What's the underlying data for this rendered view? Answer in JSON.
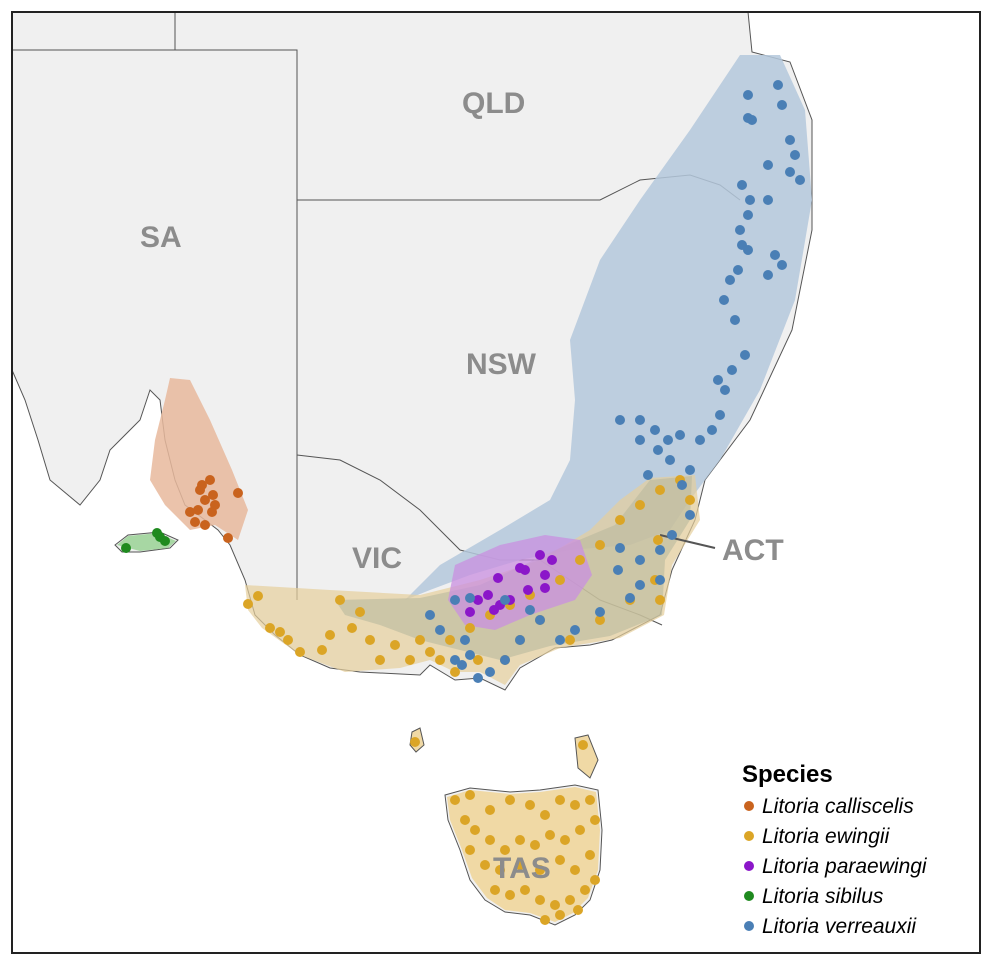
{
  "map": {
    "state_labels": {
      "qld": "QLD",
      "sa": "SA",
      "nsw": "NSW",
      "vic": "VIC",
      "act": "ACT",
      "tas": "TAS"
    },
    "legend": {
      "title": "Species",
      "items": [
        {
          "label": "Litoria calliscelis",
          "color": "#c9631e"
        },
        {
          "label": "Litoria ewingii",
          "color": "#dba526"
        },
        {
          "label": "Litoria paraewingi",
          "color": "#8b16c9"
        },
        {
          "label": "Litoria sibilus",
          "color": "#1f8a1f"
        },
        {
          "label": "Litoria verreauxii",
          "color": "#4a7fb5"
        }
      ]
    },
    "colors": {
      "land": "#f0f0f0",
      "border": "#444444",
      "range_verreauxii": "#b4c8dc",
      "range_ewingii": "#e6cf9b",
      "range_calliscelis": "#e8b99c",
      "range_paraewingi": "#c98fe0",
      "range_sibilus": "#9fd49a"
    }
  }
}
